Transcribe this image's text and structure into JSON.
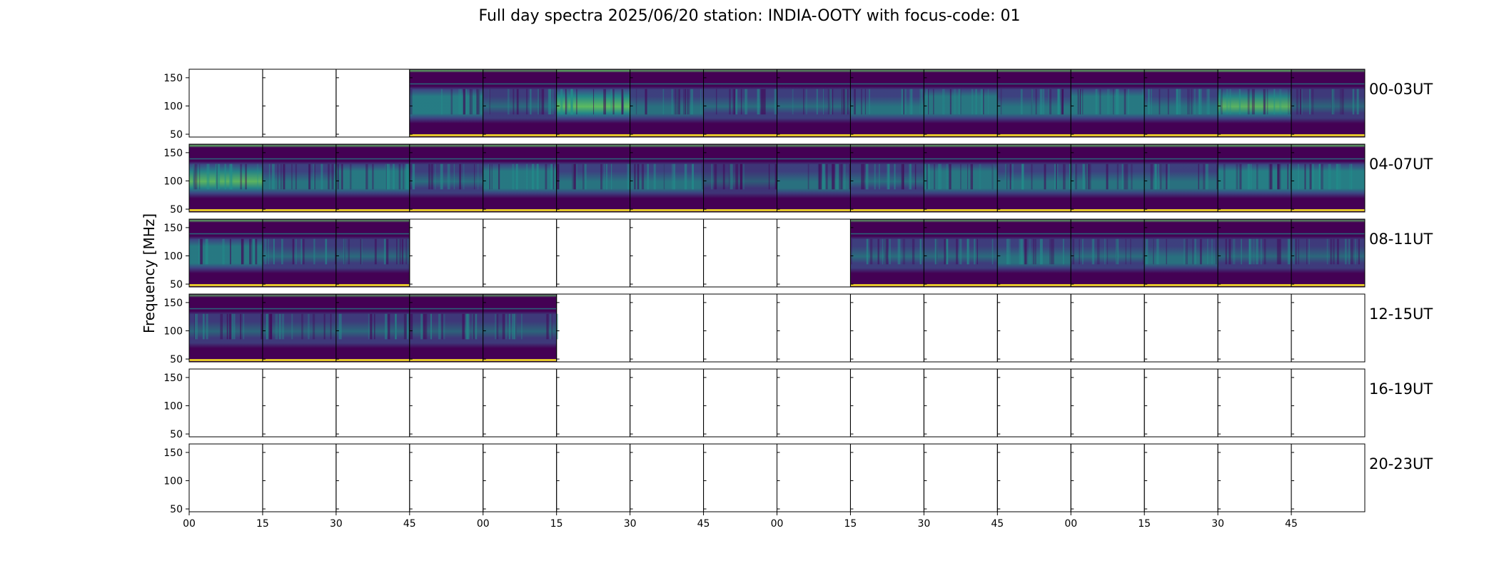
{
  "chart_data": {
    "type": "heatmap",
    "title": "Full day spectra 2025/06/20 station: INDIA-OOTY with focus-code: 01",
    "ylabel": "Frequency [MHz]",
    "yticks": [
      50,
      100,
      150
    ],
    "ylim": [
      45,
      165
    ],
    "xticks": [
      "00",
      "15",
      "30",
      "45",
      "00",
      "15",
      "30",
      "45",
      "00",
      "15",
      "30",
      "45",
      "00",
      "15",
      "30",
      "45"
    ],
    "colormap": [
      "#440154",
      "#3b528b",
      "#21918c",
      "#5ec962",
      "#fde725"
    ],
    "rows": [
      {
        "label": "00-03UT",
        "panels": [
          0,
          0,
          0,
          1,
          1,
          1,
          1,
          1,
          1,
          1,
          1,
          1,
          1,
          1,
          1,
          1
        ],
        "intensity": [
          0,
          0,
          0,
          0.75,
          0.45,
          0.95,
          0.55,
          0.5,
          0.5,
          0.6,
          0.65,
          0.6,
          0.7,
          0.6,
          0.85,
          0.35
        ]
      },
      {
        "label": "04-07UT",
        "panels": [
          1,
          1,
          1,
          1,
          1,
          1,
          1,
          1,
          1,
          1,
          1,
          1,
          1,
          1,
          1,
          1
        ],
        "intensity": [
          0.85,
          0.6,
          0.7,
          0.5,
          0.7,
          0.6,
          0.6,
          0.2,
          0.55,
          0.5,
          0.65,
          0.6,
          0.6,
          0.55,
          0.8,
          0.8
        ]
      },
      {
        "label": "08-11UT",
        "panels": [
          1,
          1,
          1,
          0,
          0,
          0,
          0,
          0,
          0,
          1,
          1,
          1,
          1,
          1,
          1,
          1
        ],
        "intensity": [
          0.7,
          0.45,
          0.45,
          0,
          0,
          0,
          0,
          0,
          0,
          0.5,
          0.45,
          0.55,
          0.5,
          0.55,
          0.4,
          0.4
        ]
      },
      {
        "label": "12-15UT",
        "panels": [
          1,
          1,
          1,
          1,
          1,
          0,
          0,
          0,
          0,
          0,
          0,
          0,
          0,
          0,
          0,
          0
        ],
        "intensity": [
          0.35,
          0.35,
          0.4,
          0.3,
          0.35,
          0,
          0,
          0,
          0,
          0,
          0,
          0,
          0,
          0,
          0,
          0
        ]
      },
      {
        "label": "16-19UT",
        "panels": [
          0,
          0,
          0,
          0,
          0,
          0,
          0,
          0,
          0,
          0,
          0,
          0,
          0,
          0,
          0,
          0
        ],
        "intensity": [
          0,
          0,
          0,
          0,
          0,
          0,
          0,
          0,
          0,
          0,
          0,
          0,
          0,
          0,
          0,
          0
        ]
      },
      {
        "label": "20-23UT",
        "panels": [
          0,
          0,
          0,
          0,
          0,
          0,
          0,
          0,
          0,
          0,
          0,
          0,
          0,
          0,
          0,
          0
        ],
        "intensity": [
          0,
          0,
          0,
          0,
          0,
          0,
          0,
          0,
          0,
          0,
          0,
          0,
          0,
          0,
          0,
          0
        ]
      }
    ]
  }
}
